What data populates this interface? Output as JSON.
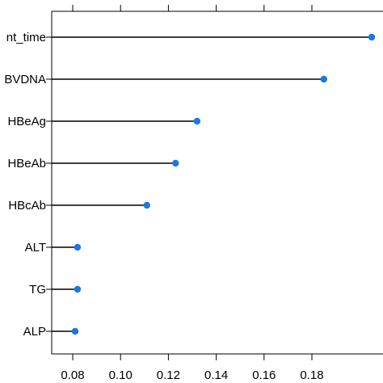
{
  "chart_data": {
    "type": "lollipop",
    "orientation": "horizontal",
    "categories": [
      "nt_time",
      "BVDNA",
      "HBeAg",
      "HBeAb",
      "HBcAb",
      "ALT",
      "TG",
      "ALP"
    ],
    "values": [
      0.205,
      0.185,
      0.132,
      0.123,
      0.111,
      0.082,
      0.082,
      0.081
    ],
    "x_ticks": [
      0.08,
      0.1,
      0.12,
      0.14,
      0.16,
      0.18
    ],
    "x_tick_labels": [
      "0.08",
      "0.10",
      "0.12",
      "0.14",
      "0.16",
      "0.18"
    ],
    "xlim": [
      0.0735,
      0.2
    ],
    "grid": false,
    "title": "",
    "xlabel": "",
    "ylabel": "",
    "colors": {
      "point": "#1a78e0",
      "line": "#000000",
      "axis": "#000000"
    }
  }
}
